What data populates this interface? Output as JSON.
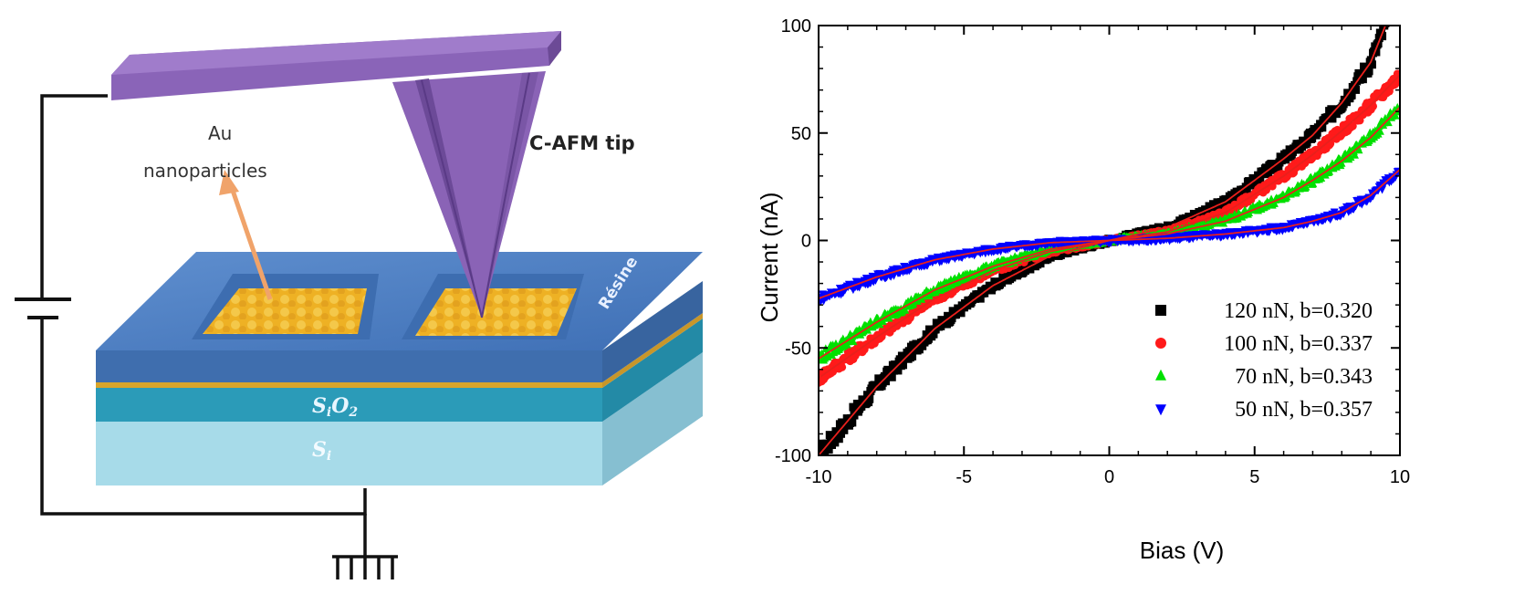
{
  "diagram": {
    "label_au": "Au",
    "label_nano": "nanoparticles",
    "label_tip": "C-AFM tip",
    "label_resine": "Résine",
    "label_sio2_a": "S",
    "label_sio2_b": "i",
    "label_sio2_c": "O",
    "label_sio2_d": "2",
    "label_si_a": "S",
    "label_si_b": "i"
  },
  "chart_data": {
    "type": "scatter",
    "xlabel": "Bias (V)",
    "ylabel": "Current (nA)",
    "xlim": [
      -10,
      10
    ],
    "ylim": [
      -100,
      100
    ],
    "xticks": [
      -10,
      -5,
      0,
      5,
      10
    ],
    "yticks": [
      -100,
      -50,
      0,
      50,
      100
    ],
    "legend_position": "bottom-right",
    "fit_color": "#e8201c",
    "series": [
      {
        "name": "120 nN, b=0.320",
        "color": "#000000",
        "marker": "square",
        "points": [
          [
            -10,
            -100
          ],
          [
            -8,
            -68
          ],
          [
            -6,
            -41
          ],
          [
            -4,
            -21
          ],
          [
            -2,
            -7
          ],
          [
            0,
            0
          ],
          [
            2,
            6
          ],
          [
            4,
            18
          ],
          [
            6,
            38
          ],
          [
            7,
            49
          ],
          [
            8,
            64
          ],
          [
            9,
            83
          ],
          [
            9.5,
            100
          ]
        ]
      },
      {
        "name": "100 nN, b=0.337",
        "color": "#ff1a1a",
        "marker": "circle",
        "points": [
          [
            -10,
            -64
          ],
          [
            -8,
            -45
          ],
          [
            -6,
            -27
          ],
          [
            -4,
            -14
          ],
          [
            -2,
            -5
          ],
          [
            0,
            0
          ],
          [
            2,
            4
          ],
          [
            4,
            13
          ],
          [
            6,
            30
          ],
          [
            7,
            40
          ],
          [
            8,
            51
          ],
          [
            9,
            63
          ],
          [
            10,
            77
          ]
        ]
      },
      {
        "name": "70 nN, b=0.343",
        "color": "#00e000",
        "marker": "triangle-up",
        "points": [
          [
            -10,
            -55
          ],
          [
            -8,
            -38
          ],
          [
            -6,
            -23
          ],
          [
            -4,
            -12
          ],
          [
            -2,
            -4
          ],
          [
            0,
            0
          ],
          [
            2,
            3
          ],
          [
            4,
            9
          ],
          [
            6,
            20
          ],
          [
            7,
            28
          ],
          [
            8,
            37
          ],
          [
            9,
            48
          ],
          [
            10,
            62
          ]
        ]
      },
      {
        "name": "50 nN, b=0.357",
        "color": "#0000ff",
        "marker": "triangle-down",
        "points": [
          [
            -10,
            -27
          ],
          [
            -8,
            -17
          ],
          [
            -6,
            -9
          ],
          [
            -4,
            -4
          ],
          [
            -2,
            -1
          ],
          [
            0,
            0
          ],
          [
            2,
            1
          ],
          [
            4,
            3
          ],
          [
            6,
            6
          ],
          [
            7,
            9
          ],
          [
            8,
            13
          ],
          [
            9,
            21
          ],
          [
            10,
            33
          ]
        ]
      }
    ]
  }
}
